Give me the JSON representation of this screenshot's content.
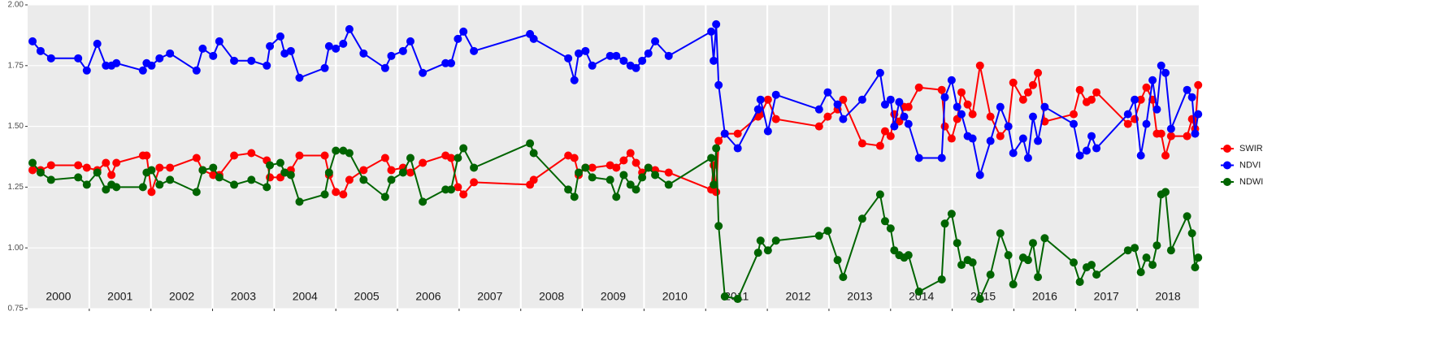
{
  "chart_data": {
    "type": "line",
    "x": [
      2000.08,
      2000.21,
      2000.38,
      2000.82,
      2000.96,
      2001.13,
      2001.27,
      2001.36,
      2001.44,
      2001.87,
      2001.93,
      2002.01,
      2002.14,
      2002.31,
      2002.74,
      2002.84,
      2003.01,
      2003.11,
      2003.35,
      2003.63,
      2003.88,
      2003.93,
      2004.1,
      2004.17,
      2004.27,
      2004.41,
      2004.82,
      2004.89,
      2005.0,
      2005.12,
      2005.22,
      2005.45,
      2005.8,
      2005.9,
      2006.09,
      2006.21,
      2006.41,
      2006.78,
      2006.87,
      2006.98,
      2007.07,
      2007.24,
      2008.15,
      2008.21,
      2008.77,
      2008.87,
      2008.94,
      2009.05,
      2009.16,
      2009.45,
      2009.55,
      2009.67,
      2009.78,
      2009.87,
      2009.97,
      2010.07,
      2010.18,
      2010.4,
      2011.09,
      2011.13,
      2011.17,
      2011.21,
      2011.31,
      2011.52,
      2011.85,
      2011.89,
      2012.01,
      2012.14,
      2012.84,
      2012.98,
      2013.14,
      2013.23,
      2013.54,
      2013.83,
      2013.91,
      2014.0,
      2014.06,
      2014.14,
      2014.22,
      2014.29,
      2014.46,
      2014.83,
      2014.88,
      2014.99,
      2015.08,
      2015.15,
      2015.25,
      2015.33,
      2015.45,
      2015.62,
      2015.78,
      2015.91,
      2015.99,
      2016.15,
      2016.23,
      2016.31,
      2016.39,
      2016.5,
      2016.97,
      2017.07,
      2017.18,
      2017.26,
      2017.34,
      2017.85,
      2017.96,
      2018.06,
      2018.15,
      2018.25,
      2018.32,
      2018.39,
      2018.46,
      2018.55,
      2018.81,
      2018.89,
      2018.94,
      2018.99
    ],
    "series": [
      {
        "name": "SWIR",
        "color": "#ff0000",
        "values": [
          1.32,
          1.32,
          1.34,
          1.34,
          1.33,
          1.32,
          1.35,
          1.3,
          1.35,
          1.38,
          1.38,
          1.23,
          1.33,
          1.33,
          1.37,
          1.32,
          1.3,
          1.3,
          1.38,
          1.39,
          1.36,
          1.29,
          1.29,
          1.31,
          1.32,
          1.38,
          1.38,
          1.3,
          1.23,
          1.22,
          1.28,
          1.32,
          1.37,
          1.32,
          1.33,
          1.31,
          1.35,
          1.38,
          1.37,
          1.25,
          1.22,
          1.27,
          1.26,
          1.28,
          1.38,
          1.37,
          1.3,
          1.33,
          1.33,
          1.34,
          1.33,
          1.36,
          1.39,
          1.35,
          1.31,
          1.33,
          1.32,
          1.31,
          1.24,
          1.34,
          1.23,
          1.44,
          1.47,
          1.47,
          1.54,
          1.55,
          1.61,
          1.53,
          1.5,
          1.54,
          1.57,
          1.61,
          1.43,
          1.42,
          1.48,
          1.46,
          1.55,
          1.52,
          1.58,
          1.58,
          1.66,
          1.65,
          1.5,
          1.45,
          1.53,
          1.64,
          1.59,
          1.55,
          1.75,
          1.54,
          1.46,
          1.5,
          1.68,
          1.61,
          1.64,
          1.67,
          1.72,
          1.52,
          1.55,
          1.65,
          1.6,
          1.61,
          1.64,
          1.51,
          1.53,
          1.61,
          1.66,
          1.61,
          1.47,
          1.47,
          1.38,
          1.46,
          1.46,
          1.53,
          1.49,
          1.67
        ]
      },
      {
        "name": "NDVI",
        "color": "#0000ff",
        "values": [
          1.85,
          1.81,
          1.78,
          1.78,
          1.73,
          1.84,
          1.75,
          1.75,
          1.76,
          1.73,
          1.76,
          1.75,
          1.78,
          1.8,
          1.73,
          1.82,
          1.79,
          1.85,
          1.77,
          1.77,
          1.75,
          1.83,
          1.87,
          1.8,
          1.81,
          1.7,
          1.74,
          1.83,
          1.82,
          1.84,
          1.9,
          1.8,
          1.74,
          1.79,
          1.81,
          1.85,
          1.72,
          1.76,
          1.76,
          1.86,
          1.89,
          1.81,
          1.88,
          1.86,
          1.78,
          1.69,
          1.8,
          1.81,
          1.75,
          1.79,
          1.79,
          1.77,
          1.75,
          1.74,
          1.77,
          1.8,
          1.85,
          1.79,
          1.89,
          1.77,
          1.92,
          1.67,
          1.47,
          1.41,
          1.57,
          1.61,
          1.48,
          1.63,
          1.57,
          1.64,
          1.59,
          1.53,
          1.61,
          1.72,
          1.59,
          1.61,
          1.5,
          1.6,
          1.54,
          1.51,
          1.37,
          1.37,
          1.62,
          1.69,
          1.58,
          1.55,
          1.46,
          1.45,
          1.3,
          1.44,
          1.58,
          1.5,
          1.39,
          1.45,
          1.37,
          1.54,
          1.44,
          1.58,
          1.51,
          1.38,
          1.4,
          1.46,
          1.41,
          1.55,
          1.61,
          1.38,
          1.51,
          1.69,
          1.57,
          1.75,
          1.72,
          1.49,
          1.65,
          1.62,
          1.47,
          1.55
        ]
      },
      {
        "name": "NDWI",
        "color": "#006400",
        "values": [
          1.35,
          1.31,
          1.28,
          1.29,
          1.26,
          1.31,
          1.24,
          1.26,
          1.25,
          1.25,
          1.31,
          1.32,
          1.26,
          1.28,
          1.23,
          1.32,
          1.33,
          1.29,
          1.26,
          1.28,
          1.25,
          1.34,
          1.35,
          1.31,
          1.3,
          1.19,
          1.22,
          1.31,
          1.4,
          1.4,
          1.39,
          1.28,
          1.21,
          1.28,
          1.31,
          1.37,
          1.19,
          1.24,
          1.24,
          1.37,
          1.41,
          1.33,
          1.43,
          1.39,
          1.24,
          1.21,
          1.31,
          1.33,
          1.29,
          1.28,
          1.21,
          1.3,
          1.26,
          1.24,
          1.29,
          1.33,
          1.3,
          1.26,
          1.37,
          1.26,
          1.41,
          1.09,
          0.8,
          0.79,
          0.98,
          1.03,
          0.99,
          1.03,
          1.05,
          1.07,
          0.95,
          0.88,
          1.12,
          1.22,
          1.11,
          1.08,
          0.99,
          0.97,
          0.96,
          0.97,
          0.82,
          0.87,
          1.1,
          1.14,
          1.02,
          0.93,
          0.95,
          0.94,
          0.79,
          0.89,
          1.06,
          0.97,
          0.85,
          0.96,
          0.95,
          1.02,
          0.88,
          1.04,
          0.94,
          0.86,
          0.92,
          0.93,
          0.89,
          0.99,
          1.0,
          0.9,
          0.96,
          0.93,
          1.01,
          1.22,
          1.23,
          0.99,
          1.13,
          1.06,
          0.92,
          0.96
        ]
      }
    ],
    "xlim": [
      2000,
      2019
    ],
    "xticks": [
      {
        "value": 2000.5,
        "label": "2000"
      },
      {
        "value": 2001.5,
        "label": "2001"
      },
      {
        "value": 2002.5,
        "label": "2002"
      },
      {
        "value": 2003.5,
        "label": "2003"
      },
      {
        "value": 2004.5,
        "label": "2004"
      },
      {
        "value": 2005.5,
        "label": "2005"
      },
      {
        "value": 2006.5,
        "label": "2006"
      },
      {
        "value": 2007.5,
        "label": "2007"
      },
      {
        "value": 2008.5,
        "label": "2008"
      },
      {
        "value": 2009.5,
        "label": "2009"
      },
      {
        "value": 2010.5,
        "label": "2010"
      },
      {
        "value": 2011.5,
        "label": "2011"
      },
      {
        "value": 2012.5,
        "label": "2012"
      },
      {
        "value": 2013.5,
        "label": "2013"
      },
      {
        "value": 2014.5,
        "label": "2014"
      },
      {
        "value": 2015.5,
        "label": "2015"
      },
      {
        "value": 2016.5,
        "label": "2016"
      },
      {
        "value": 2017.5,
        "label": "2017"
      },
      {
        "value": 2018.5,
        "label": "2018"
      }
    ],
    "xgrid": [
      2001,
      2002,
      2003,
      2004,
      2005,
      2006,
      2007,
      2008,
      2009,
      2010,
      2011,
      2012,
      2013,
      2014,
      2015,
      2016,
      2017,
      2018
    ],
    "ylim": [
      0.75,
      2
    ],
    "yticks": [
      {
        "value": 0.75,
        "label": "0.75"
      },
      {
        "value": 1,
        "label": "1.00"
      },
      {
        "value": 1.25,
        "label": "1.25"
      },
      {
        "value": 1.5,
        "label": "1.50"
      },
      {
        "value": 1.75,
        "label": "1.75"
      },
      {
        "value": 2,
        "label": "2.00"
      }
    ],
    "grid": true,
    "legend": "right"
  }
}
